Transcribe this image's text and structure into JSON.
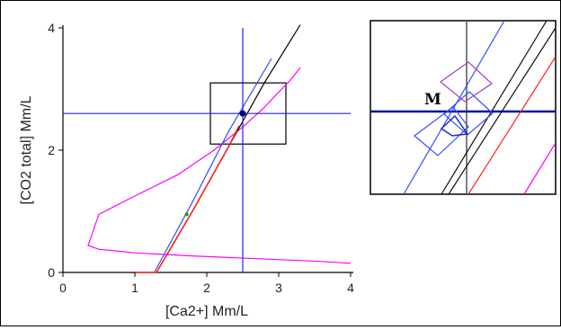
{
  "chart_data": [
    {
      "type": "line",
      "xlabel": "[Ca2+] Mm/L",
      "ylabel": "[CO2 total] Mm/L",
      "xlim": [
        0,
        4
      ],
      "ylim": [
        0,
        4
      ],
      "xticks": [
        "0",
        "1",
        "2",
        "3",
        "4"
      ],
      "yticks": [
        "0",
        "2",
        "4"
      ],
      "grid": false,
      "series": [
        {
          "color": "#ff00ff",
          "x": [
            4.0,
            3.6,
            3.0,
            2.4,
            1.8,
            1.0,
            0.5,
            0.35,
            0.5,
            1.0,
            1.6,
            2.1,
            2.5,
            2.8,
            3.0,
            3.15,
            3.3
          ],
          "y": [
            0.15,
            0.18,
            0.21,
            0.24,
            0.27,
            0.32,
            0.38,
            0.44,
            0.95,
            1.25,
            1.6,
            2.0,
            2.38,
            2.7,
            2.95,
            3.13,
            3.35
          ]
        },
        {
          "color": "#000000",
          "x": [
            1.3,
            1.8,
            2.3,
            2.8,
            3.3
          ],
          "y": [
            0.0,
            1.0,
            2.05,
            3.1,
            4.05
          ]
        },
        {
          "color": "#3050ff",
          "x": [
            1.27,
            1.8,
            2.3,
            2.9
          ],
          "y": [
            0.0,
            1.15,
            2.3,
            3.5
          ]
        },
        {
          "color": "#ff2020",
          "x": [
            1.0,
            1.3,
            1.8,
            2.3,
            2.45
          ],
          "y": [
            0.0,
            0.0,
            1.0,
            2.05,
            2.4
          ]
        },
        {
          "color": "#2020ff",
          "x": [
            2.5,
            2.5
          ],
          "y": [
            0,
            4
          ]
        },
        {
          "color": "#2020ff",
          "x": [
            0,
            4
          ],
          "y": [
            2.6,
            2.6
          ]
        }
      ],
      "points": [
        {
          "x": 1.72,
          "y": 0.95,
          "color": "#00a000"
        },
        {
          "x": 2.5,
          "y": 2.6,
          "color": "#000080"
        }
      ],
      "zoom_box": {
        "x": [
          2.05,
          3.1
        ],
        "y": [
          2.1,
          3.1
        ]
      }
    },
    {
      "type": "line",
      "panel": "zoom-inset",
      "annotation": "M"
    }
  ]
}
